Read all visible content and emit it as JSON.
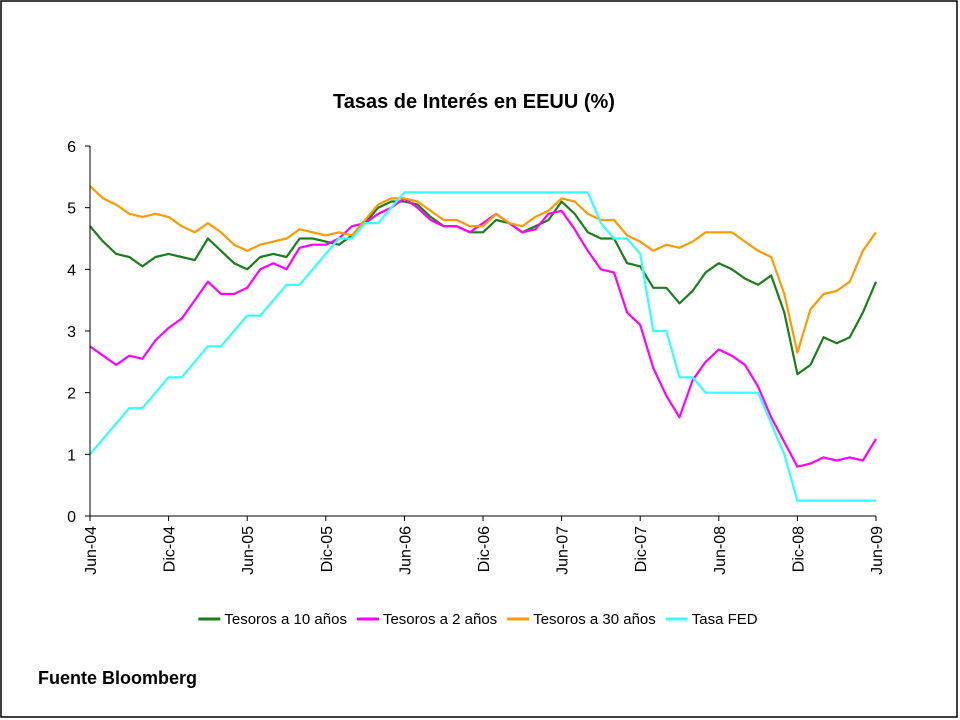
{
  "chart_data": {
    "type": "line",
    "title": "Tasas de Interés en EEUU (%)",
    "source": "Fuente Bloomberg",
    "categories": [
      "Jun-04",
      null,
      null,
      null,
      null,
      null,
      "Dic-04",
      null,
      null,
      null,
      null,
      null,
      "Jun-05",
      null,
      null,
      null,
      null,
      null,
      "Dic-05",
      null,
      null,
      null,
      null,
      null,
      "Jun-06",
      null,
      null,
      null,
      null,
      null,
      "Dic-06",
      null,
      null,
      null,
      null,
      null,
      "Jun-07",
      null,
      null,
      null,
      null,
      null,
      "Dic-07",
      null,
      null,
      null,
      null,
      null,
      "Jun-08",
      null,
      null,
      null,
      null,
      null,
      "Dic-08",
      null,
      null,
      null,
      null,
      null,
      "Jun-09"
    ],
    "ylim": [
      0,
      6
    ],
    "yticks": [
      0,
      1,
      2,
      3,
      4,
      5,
      6
    ],
    "grid": false,
    "legend": "bottom",
    "series": [
      {
        "name": "Tesoros a 10 años",
        "color": "#1a7f1a",
        "values": [
          4.7,
          4.45,
          4.25,
          4.2,
          4.05,
          4.2,
          4.25,
          4.2,
          4.15,
          4.5,
          4.3,
          4.1,
          4.0,
          4.2,
          4.25,
          4.2,
          4.5,
          4.5,
          4.45,
          4.4,
          4.55,
          4.75,
          5.0,
          5.1,
          5.1,
          5.05,
          4.85,
          4.7,
          4.7,
          4.6,
          4.6,
          4.8,
          4.75,
          4.6,
          4.7,
          4.8,
          5.1,
          4.9,
          4.6,
          4.5,
          4.5,
          4.1,
          4.05,
          3.7,
          3.7,
          3.45,
          3.65,
          3.95,
          4.1,
          4.0,
          3.85,
          3.75,
          3.9,
          3.3,
          2.3,
          2.45,
          2.9,
          2.8,
          2.9,
          3.3,
          3.8
        ]
      },
      {
        "name": "Tesoros a 2 años",
        "color": "#ff00ff",
        "values": [
          2.75,
          2.6,
          2.45,
          2.6,
          2.55,
          2.85,
          3.05,
          3.2,
          3.5,
          3.8,
          3.6,
          3.6,
          3.7,
          4.0,
          4.1,
          4.0,
          4.35,
          4.4,
          4.4,
          4.5,
          4.7,
          4.75,
          4.9,
          5.0,
          5.15,
          5.0,
          4.8,
          4.7,
          4.7,
          4.6,
          4.75,
          4.9,
          4.75,
          4.6,
          4.65,
          4.9,
          4.95,
          4.65,
          4.3,
          4.0,
          3.95,
          3.3,
          3.1,
          2.4,
          1.95,
          1.6,
          2.2,
          2.5,
          2.7,
          2.6,
          2.45,
          2.1,
          1.6,
          1.2,
          0.8,
          0.85,
          0.95,
          0.9,
          0.95,
          0.9,
          1.25
        ]
      },
      {
        "name": "Tesoros a 30 años",
        "color": "#ff9900",
        "values": [
          5.35,
          5.15,
          5.05,
          4.9,
          4.85,
          4.9,
          4.85,
          4.7,
          4.6,
          4.75,
          4.6,
          4.4,
          4.3,
          4.4,
          4.45,
          4.5,
          4.65,
          4.6,
          4.55,
          4.6,
          4.55,
          4.8,
          5.05,
          5.15,
          5.15,
          5.1,
          4.95,
          4.8,
          4.8,
          4.7,
          4.7,
          4.9,
          4.75,
          4.7,
          4.85,
          4.95,
          5.15,
          5.1,
          4.9,
          4.8,
          4.8,
          4.55,
          4.45,
          4.3,
          4.4,
          4.35,
          4.45,
          4.6,
          4.6,
          4.6,
          4.45,
          4.3,
          4.2,
          3.6,
          2.65,
          3.35,
          3.6,
          3.65,
          3.8,
          4.3,
          4.6
        ]
      },
      {
        "name": "Tasa FED",
        "color": "#33ffff",
        "values": [
          1.0,
          1.25,
          1.5,
          1.75,
          1.75,
          2.0,
          2.25,
          2.25,
          2.5,
          2.75,
          2.75,
          3.0,
          3.25,
          3.25,
          3.5,
          3.75,
          3.75,
          4.0,
          4.25,
          4.5,
          4.5,
          4.75,
          4.75,
          5.0,
          5.25,
          5.25,
          5.25,
          5.25,
          5.25,
          5.25,
          5.25,
          5.25,
          5.25,
          5.25,
          5.25,
          5.25,
          5.25,
          5.25,
          5.25,
          4.75,
          4.5,
          4.5,
          4.25,
          3.0,
          3.0,
          2.25,
          2.25,
          2.0,
          2.0,
          2.0,
          2.0,
          2.0,
          1.5,
          1.0,
          0.25,
          0.25,
          0.25,
          0.25,
          0.25,
          0.25,
          0.25
        ]
      }
    ]
  }
}
